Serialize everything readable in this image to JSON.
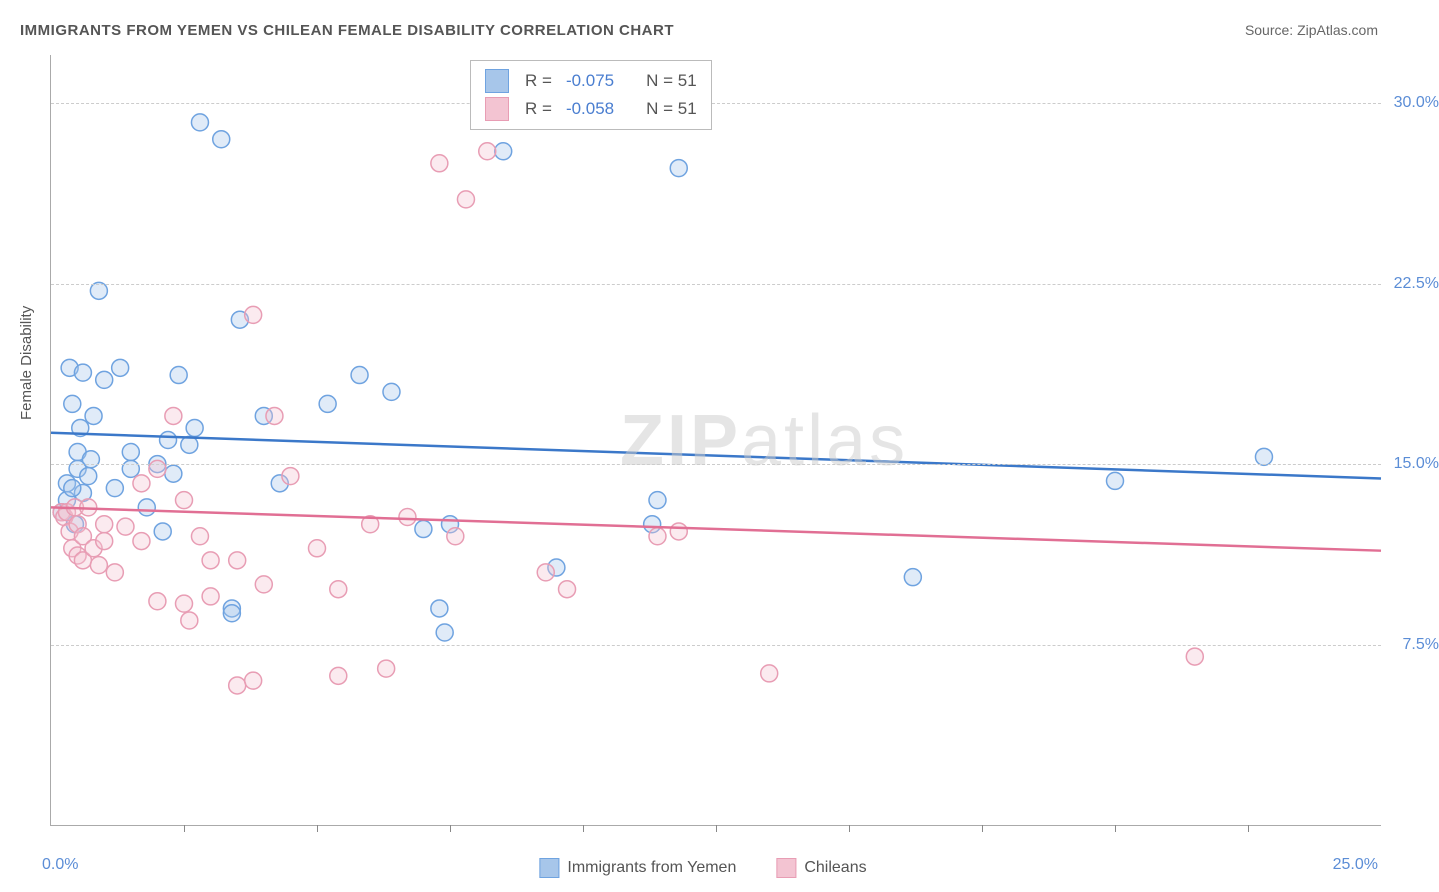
{
  "title": "IMMIGRANTS FROM YEMEN VS CHILEAN FEMALE DISABILITY CORRELATION CHART",
  "source": "Source: ZipAtlas.com",
  "ylabel": "Female Disability",
  "watermark": "ZIPatlas",
  "chart": {
    "type": "scatter",
    "xlim": [
      0,
      25
    ],
    "ylim": [
      0,
      32
    ],
    "xtick_step": 2.5,
    "grid_color": "#cccccc",
    "axis_color": "#aaaaaa",
    "background_color": "#ffffff",
    "marker_radius": 8.5,
    "marker_stroke_width": 1.5,
    "fill_opacity": 0.35,
    "ytick_labels": [
      {
        "v": 7.5,
        "label": "7.5%"
      },
      {
        "v": 15.0,
        "label": "15.0%"
      },
      {
        "v": 22.5,
        "label": "22.5%"
      },
      {
        "v": 30.0,
        "label": "30.0%"
      }
    ],
    "xaxis_left_label": "0.0%",
    "xaxis_right_label": "25.0%",
    "series": [
      {
        "name": "Immigrants from Yemen",
        "color_stroke": "#6fa3e0",
        "color_fill": "#a7c6ea",
        "line_color": "#3b78c9",
        "line_width": 2.5,
        "R": "-0.075",
        "N": "51",
        "trend": {
          "x1": 0,
          "y1": 16.3,
          "x2": 25,
          "y2": 14.4
        },
        "points": [
          [
            0.2,
            13.0
          ],
          [
            0.3,
            13.5
          ],
          [
            0.3,
            14.2
          ],
          [
            0.35,
            19.0
          ],
          [
            0.4,
            17.5
          ],
          [
            0.45,
            12.5
          ],
          [
            0.5,
            14.8
          ],
          [
            0.5,
            15.5
          ],
          [
            0.55,
            16.5
          ],
          [
            0.6,
            18.8
          ],
          [
            0.6,
            13.8
          ],
          [
            0.7,
            14.5
          ],
          [
            0.75,
            15.2
          ],
          [
            0.9,
            22.2
          ],
          [
            1.0,
            18.5
          ],
          [
            1.2,
            14.0
          ],
          [
            1.3,
            19.0
          ],
          [
            1.5,
            14.8
          ],
          [
            1.8,
            13.2
          ],
          [
            2.0,
            15.0
          ],
          [
            2.1,
            12.2
          ],
          [
            2.3,
            14.6
          ],
          [
            2.4,
            18.7
          ],
          [
            2.6,
            15.8
          ],
          [
            2.7,
            16.5
          ],
          [
            2.8,
            29.2
          ],
          [
            3.2,
            28.5
          ],
          [
            3.4,
            9.0
          ],
          [
            3.4,
            8.8
          ],
          [
            3.55,
            21.0
          ],
          [
            4.0,
            17.0
          ],
          [
            4.3,
            14.2
          ],
          [
            5.2,
            17.5
          ],
          [
            5.8,
            18.7
          ],
          [
            6.4,
            18.0
          ],
          [
            7.0,
            12.3
          ],
          [
            7.3,
            9.0
          ],
          [
            7.4,
            8.0
          ],
          [
            7.5,
            12.5
          ],
          [
            8.5,
            28.0
          ],
          [
            9.5,
            10.7
          ],
          [
            11.4,
            13.5
          ],
          [
            11.8,
            27.3
          ],
          [
            11.3,
            12.5
          ],
          [
            16.2,
            10.3
          ],
          [
            20.0,
            14.3
          ],
          [
            22.8,
            15.3
          ],
          [
            0.4,
            14.0
          ],
          [
            0.8,
            17.0
          ],
          [
            1.5,
            15.5
          ],
          [
            2.2,
            16.0
          ]
        ]
      },
      {
        "name": "Chileans",
        "color_stroke": "#e89db4",
        "color_fill": "#f3c4d2",
        "line_color": "#e16f94",
        "line_width": 2.5,
        "R": "-0.058",
        "N": "51",
        "trend": {
          "x1": 0,
          "y1": 13.2,
          "x2": 25,
          "y2": 11.4
        },
        "points": [
          [
            0.2,
            13.0
          ],
          [
            0.25,
            12.8
          ],
          [
            0.3,
            13.0
          ],
          [
            0.35,
            12.2
          ],
          [
            0.4,
            11.5
          ],
          [
            0.45,
            13.2
          ],
          [
            0.5,
            12.5
          ],
          [
            0.5,
            11.2
          ],
          [
            0.6,
            12.0
          ],
          [
            0.6,
            11.0
          ],
          [
            0.8,
            11.5
          ],
          [
            0.9,
            10.8
          ],
          [
            1.0,
            12.5
          ],
          [
            1.0,
            11.8
          ],
          [
            1.2,
            10.5
          ],
          [
            1.4,
            12.4
          ],
          [
            1.7,
            14.2
          ],
          [
            1.7,
            11.8
          ],
          [
            2.0,
            14.8
          ],
          [
            2.0,
            9.3
          ],
          [
            2.3,
            17.0
          ],
          [
            2.5,
            9.2
          ],
          [
            2.5,
            13.5
          ],
          [
            2.6,
            8.5
          ],
          [
            2.8,
            12.0
          ],
          [
            3.0,
            11.0
          ],
          [
            3.0,
            9.5
          ],
          [
            3.5,
            11.0
          ],
          [
            3.5,
            5.8
          ],
          [
            3.8,
            21.2
          ],
          [
            3.8,
            6.0
          ],
          [
            4.0,
            10.0
          ],
          [
            4.2,
            17.0
          ],
          [
            4.5,
            14.5
          ],
          [
            5.0,
            11.5
          ],
          [
            5.4,
            6.2
          ],
          [
            5.4,
            9.8
          ],
          [
            6.0,
            12.5
          ],
          [
            6.3,
            6.5
          ],
          [
            6.7,
            12.8
          ],
          [
            7.3,
            27.5
          ],
          [
            7.6,
            12.0
          ],
          [
            7.8,
            26.0
          ],
          [
            8.2,
            28.0
          ],
          [
            9.3,
            10.5
          ],
          [
            9.7,
            9.8
          ],
          [
            11.4,
            12.0
          ],
          [
            11.8,
            12.2
          ],
          [
            13.5,
            6.3
          ],
          [
            21.5,
            7.0
          ],
          [
            0.7,
            13.2
          ]
        ]
      }
    ]
  },
  "bottom_legend": [
    {
      "label": "Immigrants from Yemen",
      "fill": "#a7c6ea",
      "stroke": "#6fa3e0"
    },
    {
      "label": "Chileans",
      "fill": "#f3c4d2",
      "stroke": "#e89db4"
    }
  ]
}
